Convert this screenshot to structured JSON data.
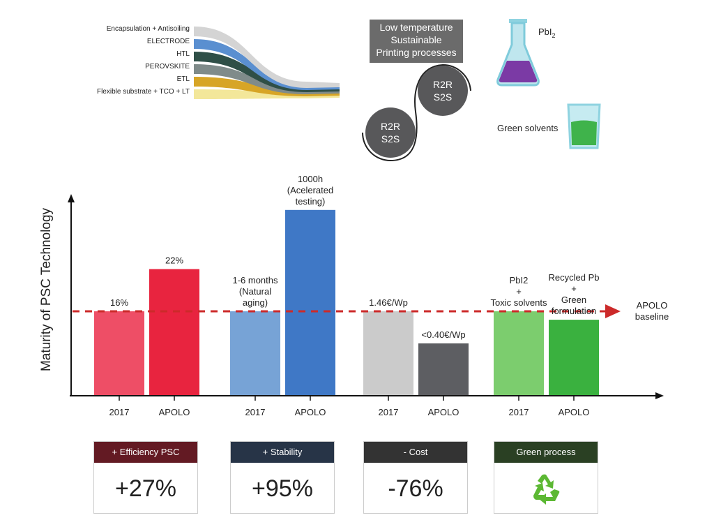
{
  "layers": {
    "labels": [
      "Encapsulation + Antisoiling",
      "ELECTRODE",
      "HTL",
      "PEROVSKITE",
      "ETL",
      "Flexible substrate + TCO + LT"
    ],
    "colors": [
      "#d4d4d4",
      "#5a8fd0",
      "#2f4f47",
      "#7f8b8a",
      "#d7a526",
      "#f3e79a"
    ]
  },
  "process": {
    "banner_lines": [
      "Low temperature",
      "Sustainable",
      "Printing processes"
    ],
    "roller_1": [
      "R2R",
      "S2S"
    ],
    "roller_2": [
      "R2R",
      "S2S"
    ]
  },
  "chemistry": {
    "flask_label_main": "PbI",
    "flask_label_sub": "2",
    "beaker_label": "Green solvents"
  },
  "chart_data": {
    "type": "bar",
    "ylabel": "Maturity of PSC Technology",
    "categories": [
      "2017",
      "APOLO",
      "2017",
      "APOLO",
      "2017",
      "APOLO",
      "2017",
      "APOLO"
    ],
    "values": [
      1.0,
      1.5,
      1.0,
      2.2,
      1.0,
      0.62,
      1.0,
      0.9
    ],
    "colors": [
      "#ee4e66",
      "#e8243f",
      "#77a3d6",
      "#3f78c6",
      "#cbcbcb",
      "#5d5e62",
      "#7ccd6e",
      "#3ab13f"
    ],
    "bar_labels": [
      [
        "16%"
      ],
      [
        "22%"
      ],
      [
        "1-6 months",
        "(Natural",
        "aging)"
      ],
      [
        "1000h",
        "(Acelerated",
        "testing)"
      ],
      [
        "1.46€/Wp"
      ],
      [
        "<0.40€/Wp"
      ],
      [
        "PbI2",
        "+",
        "Toxic solvents"
      ],
      [
        "Recycled Pb",
        "+",
        "Green",
        "formulation"
      ]
    ],
    "baseline": {
      "value": 1.0,
      "label_lines": [
        "APOLO",
        "baseline"
      ],
      "color": "#cc2a2a"
    }
  },
  "summary": [
    {
      "title": "+ Efficiency PSC",
      "value": "+27%",
      "color": "#631a23"
    },
    {
      "title": "+ Stability",
      "value": "+95%",
      "color": "#273447"
    },
    {
      "title": "- Cost",
      "value": "-76%",
      "color": "#333333"
    },
    {
      "title": "Green process",
      "value": "",
      "icon": "recycle-icon",
      "color": "#2a4023"
    }
  ]
}
